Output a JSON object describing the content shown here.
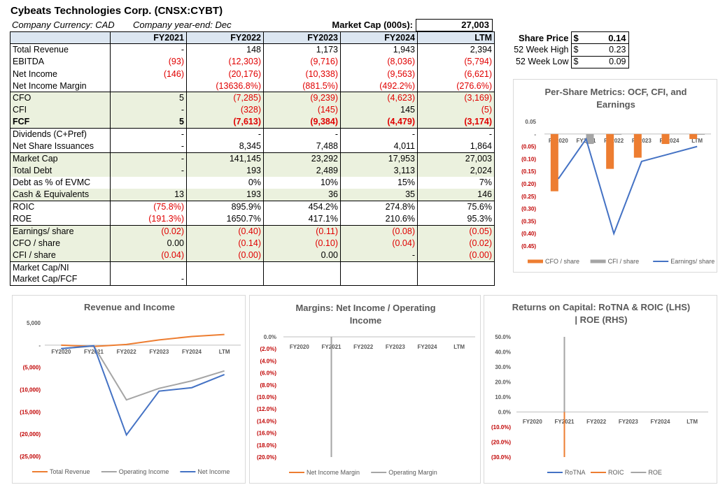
{
  "header": {
    "title": "Cybeats Technologies Corp. (CNSX:CYBT)",
    "currency": "Company Currency: CAD",
    "year_end": "Company year-end: Dec",
    "market_cap_label": "Market Cap (000s):",
    "market_cap_value": "27,003"
  },
  "table": {
    "columns": [
      "FY2021",
      "FY2022",
      "FY2023",
      "FY2024",
      "LTM"
    ],
    "rows": [
      {
        "label": "Total Revenue",
        "values": [
          "-",
          "148",
          "1,173",
          "1,943",
          "2,394"
        ]
      },
      {
        "label": "EBITDA",
        "values": [
          "(93)",
          "(12,303)",
          "(9,716)",
          "(8,036)",
          "(5,794)"
        ]
      },
      {
        "label": "Net Income",
        "values": [
          "(146)",
          "(20,176)",
          "(10,338)",
          "(9,563)",
          "(6,621)"
        ]
      },
      {
        "label": "Net Income Margin",
        "values": [
          "",
          "(13636.8%)",
          "(881.5%)",
          "(492.2%)",
          "(276.6%)"
        ]
      },
      {
        "label": "CFO",
        "values": [
          "5",
          "(7,285)",
          "(9,239)",
          "(4,623)",
          "(3,169)"
        ]
      },
      {
        "label": "CFI",
        "values": [
          "-",
          "(328)",
          "(145)",
          "145",
          "(5)"
        ]
      },
      {
        "label": "FCF",
        "values": [
          "5",
          "(7,613)",
          "(9,384)",
          "(4,479)",
          "(3,174)"
        ]
      },
      {
        "label": "Dividends (C+Pref)",
        "values": [
          "-",
          "-",
          "-",
          "-",
          "-"
        ]
      },
      {
        "label": "Net Share Issuances",
        "values": [
          "-",
          "8,345",
          "7,488",
          "4,011",
          "1,864"
        ]
      },
      {
        "label": "Market Cap",
        "values": [
          "-",
          "141,145",
          "23,292",
          "17,953",
          "27,003"
        ]
      },
      {
        "label": "Total Debt",
        "values": [
          "-",
          "193",
          "2,489",
          "3,113",
          "2,024"
        ]
      },
      {
        "label": "Debt as % of EVMC",
        "values": [
          "",
          "0%",
          "10%",
          "15%",
          "7%"
        ]
      },
      {
        "label": "Cash & Equivalents",
        "values": [
          "13",
          "193",
          "36",
          "35",
          "146"
        ]
      },
      {
        "label": "ROIC",
        "values": [
          "(75.8%)",
          "895.9%",
          "454.2%",
          "274.8%",
          "75.6%"
        ]
      },
      {
        "label": "ROE",
        "values": [
          "(191.3%)",
          "1650.7%",
          "417.1%",
          "210.6%",
          "95.3%"
        ]
      },
      {
        "label": "Earnings/ share",
        "values": [
          "(0.02)",
          "(0.40)",
          "(0.11)",
          "(0.08)",
          "(0.05)"
        ]
      },
      {
        "label": "CFO / share",
        "values": [
          "0.00",
          "(0.14)",
          "(0.10)",
          "(0.04)",
          "(0.02)"
        ]
      },
      {
        "label": "CFI / share",
        "values": [
          "(0.04)",
          "(0.00)",
          "0.00",
          "-",
          "(0.00)"
        ]
      },
      {
        "label": "Market Cap/NI",
        "values": [
          "",
          "",
          "",
          "",
          ""
        ]
      },
      {
        "label": "Market Cap/FCF",
        "values": [
          "-",
          "",
          "",
          "",
          ""
        ]
      }
    ]
  },
  "share_price": {
    "rows": [
      {
        "label": "Share Price",
        "currency": "$",
        "value": "0.14"
      },
      {
        "label": "52 Week High",
        "currency": "$",
        "value": "0.23"
      },
      {
        "label": "52 Week Low",
        "currency": "$",
        "value": "0.09"
      }
    ]
  },
  "colors": {
    "orange": "#ed7d31",
    "gray": "#a5a5a5",
    "blue": "#4472c4",
    "negative": "#e00000"
  },
  "chart_data": [
    {
      "id": "per_share",
      "type": "bar+line",
      "title": "Per-Share Metrics: OCF, CFI, and Earnings",
      "categories": [
        "FY2020",
        "FY2021",
        "FY2022",
        "FY2023",
        "FY2024",
        "LTM"
      ],
      "ylim": [
        -0.45,
        0.05
      ],
      "yticks": [
        "0.05",
        "-",
        "(0.05)",
        "(0.10)",
        "(0.15)",
        "(0.20)",
        "(0.25)",
        "(0.30)",
        "(0.35)",
        "(0.40)",
        "(0.45)"
      ],
      "series": [
        {
          "name": "CFO / share",
          "kind": "bar",
          "values": [
            -0.23,
            0.0,
            -0.14,
            -0.095,
            -0.04,
            -0.02
          ]
        },
        {
          "name": "CFI / share",
          "kind": "bar",
          "values": [
            0,
            -0.04,
            -0.002,
            0.0,
            0,
            -0.001
          ]
        },
        {
          "name": "Earnings/ share",
          "kind": "line",
          "values": [
            -0.18,
            -0.02,
            -0.4,
            -0.11,
            -0.08,
            -0.05
          ]
        }
      ]
    },
    {
      "id": "revenue_income",
      "type": "line",
      "title": "Revenue and Income",
      "categories": [
        "FY2020",
        "FY2021",
        "FY2022",
        "FY2023",
        "FY2024",
        "LTM"
      ],
      "ylim": [
        -25000,
        5000
      ],
      "yticks": [
        "5,000",
        "-",
        "(5,000)",
        "(10,000)",
        "(15,000)",
        "(20,000)",
        "(25,000)"
      ],
      "series": [
        {
          "name": "Total Revenue",
          "values": [
            0,
            -300,
            148,
            1173,
            1943,
            2394
          ]
        },
        {
          "name": "Operating Income",
          "values": [
            -800,
            -200,
            -12300,
            -9716,
            -8036,
            -5794
          ]
        },
        {
          "name": "Net Income",
          "values": [
            -800,
            -146,
            -20176,
            -10338,
            -9563,
            -6621
          ]
        }
      ]
    },
    {
      "id": "margins",
      "type": "line",
      "title": "Margins: Net Income / Operating Income",
      "categories": [
        "FY2020",
        "FY2021",
        "FY2022",
        "FY2023",
        "FY2024",
        "LTM"
      ],
      "ylim": [
        -20,
        0
      ],
      "yticks": [
        "0.0%",
        "(2.0%)",
        "(4.0%)",
        "(6.0%)",
        "(8.0%)",
        "(10.0%)",
        "(12.0%)",
        "(14.0%)",
        "(16.0%)",
        "(18.0%)",
        "(20.0%)"
      ],
      "series": [
        {
          "name": "Net Income Margin",
          "values": [
            null,
            -20,
            null,
            null,
            null,
            null
          ]
        },
        {
          "name": "Operating Margin",
          "values": [
            null,
            -20,
            null,
            null,
            null,
            null
          ]
        }
      ]
    },
    {
      "id": "returns",
      "type": "line",
      "title": "Returns on Capital: RoTNA & ROIC (LHS) | ROE (RHS)",
      "categories": [
        "FY2020",
        "FY2021",
        "FY2022",
        "FY2023",
        "FY2024",
        "LTM"
      ],
      "ylim": [
        -30,
        50
      ],
      "yticks": [
        "50.0%",
        "40.0%",
        "30.0%",
        "20.0%",
        "10.0%",
        "0.0%",
        "(10.0%)",
        "(20.0%)",
        "(30.0%)"
      ],
      "series": [
        {
          "name": "RoTNA",
          "values": [
            null,
            -30,
            null,
            null,
            null,
            null
          ]
        },
        {
          "name": "ROIC",
          "values": [
            null,
            -30,
            null,
            null,
            null,
            null
          ]
        },
        {
          "name": "ROE",
          "values": [
            null,
            50,
            null,
            null,
            null,
            null
          ]
        }
      ]
    }
  ]
}
